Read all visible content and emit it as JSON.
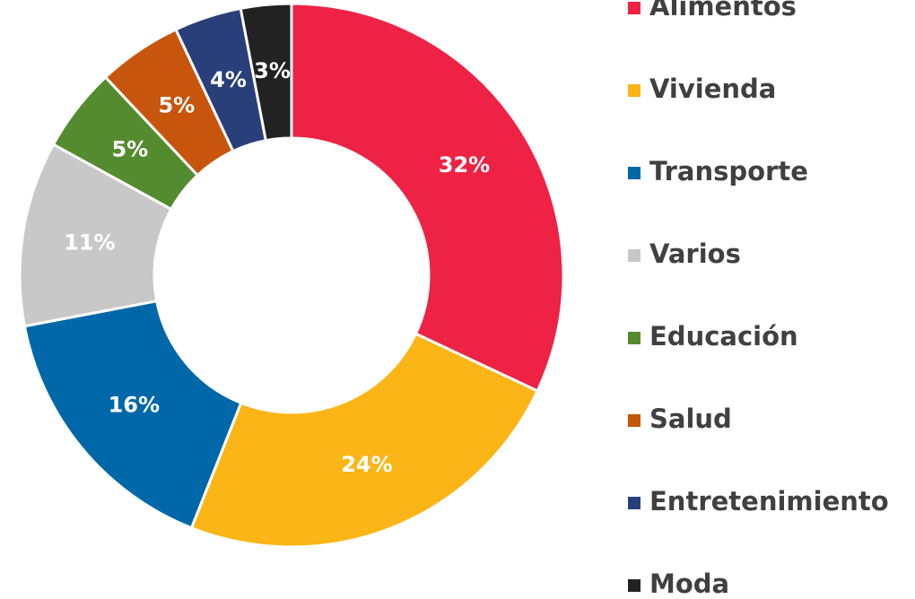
{
  "chart_data": {
    "type": "pie",
    "categories": [
      "Alimentos",
      "Vivienda",
      "Transporte",
      "Varios",
      "Educación",
      "Salud",
      "Entretenimiento",
      "Moda"
    ],
    "values": [
      32,
      24,
      16,
      11,
      5,
      5,
      4,
      3
    ],
    "value_labels": [
      "32%",
      "24%",
      "16%",
      "11%",
      "5%",
      "5%",
      "4%",
      "3%"
    ],
    "colors": [
      "#ee2244",
      "#fbb516",
      "#0068a8",
      "#c8c8c8",
      "#558b2f",
      "#c8550e",
      "#283f7a",
      "#222222"
    ],
    "legend": "right"
  }
}
